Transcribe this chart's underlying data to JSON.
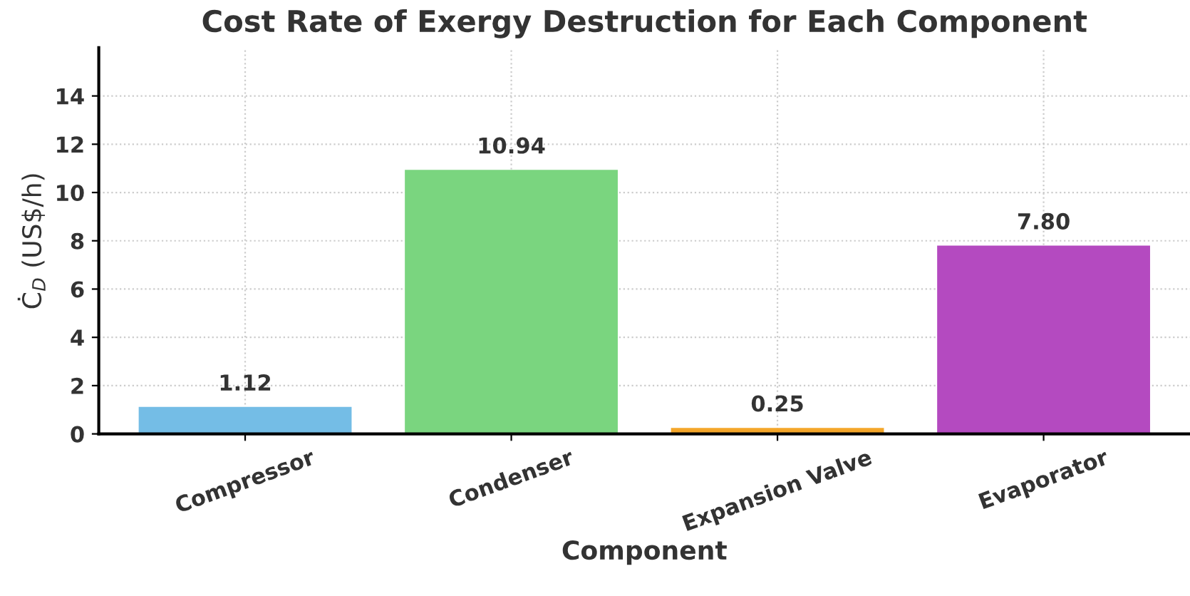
{
  "chart_data": {
    "type": "bar",
    "title": "Cost Rate of Exergy Destruction for Each Component",
    "xlabel": "Component",
    "ylabel": "Ċ$_{D}$ (US$/h)",
    "categories": [
      "Compressor",
      "Condenser",
      "Expansion Valve",
      "Evaporator"
    ],
    "values": [
      1.12,
      10.94,
      0.25,
      7.8
    ],
    "value_labels": [
      "1.12",
      "10.94",
      "0.25",
      "7.80"
    ],
    "colors": [
      "#74bde6",
      "#7ad57f",
      "#f4a62a",
      "#b44ac0"
    ],
    "ylim": [
      0,
      16
    ],
    "yticks": [
      0,
      2,
      4,
      6,
      8,
      10,
      12,
      14
    ],
    "grid": true
  }
}
